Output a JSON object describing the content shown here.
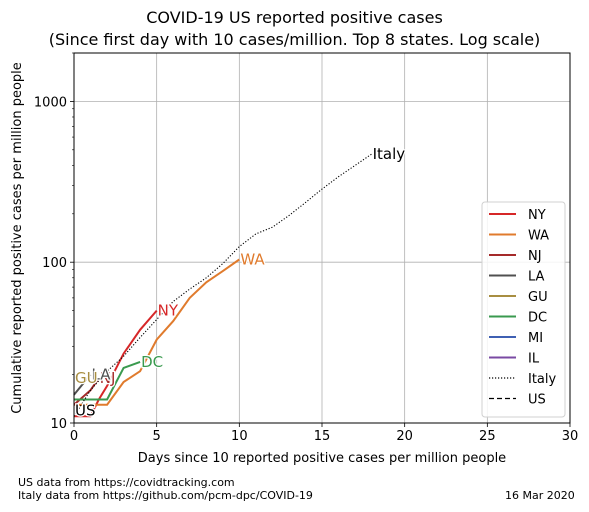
{
  "chart_data": {
    "type": "line",
    "title": [
      "COVID-19 US reported positive cases",
      "(Since first day with 10 cases/million. Top 8 states. Log scale)"
    ],
    "xlabel": "Days since 10 reported positive cases per million people",
    "ylabel": "Cumulative reported positive cases per million people",
    "xlim": [
      0,
      30
    ],
    "ylim": [
      10,
      2000
    ],
    "yscale": "log",
    "xticks": [
      0,
      5,
      10,
      15,
      20,
      25,
      30
    ],
    "yticks": [
      10,
      100,
      1000
    ],
    "grid": true,
    "legend_position": "center-right",
    "series": [
      {
        "name": "NY",
        "color": "#d62728",
        "style": "solid",
        "label_text": "NY",
        "x": [
          0,
          0.5,
          1,
          1.5,
          2,
          3,
          4,
          5
        ],
        "y": [
          11,
          11,
          11,
          14,
          17,
          27,
          38,
          50
        ]
      },
      {
        "name": "WA",
        "color": "#e07b2d",
        "style": "solid",
        "label_text": "WA",
        "x": [
          0,
          1,
          2,
          3,
          4,
          5,
          6,
          7,
          8,
          9,
          10
        ],
        "y": [
          13,
          13,
          13,
          18,
          21,
          33,
          43,
          60,
          75,
          88,
          104
        ]
      },
      {
        "name": "NJ",
        "color": "#a52a2a",
        "style": "solid",
        "label_text": "NJ",
        "x": [
          0,
          1,
          1.5
        ],
        "y": [
          13,
          16,
          19
        ]
      },
      {
        "name": "LA",
        "color": "#505050",
        "style": "solid",
        "label_text": "LA",
        "x": [
          0,
          1
        ],
        "y": [
          15,
          20
        ]
      },
      {
        "name": "GU",
        "color": "#a88e41",
        "style": "solid",
        "label_text": "GU",
        "x": [
          0
        ],
        "y": [
          19
        ]
      },
      {
        "name": "DC",
        "color": "#3a9a4f",
        "style": "solid",
        "label_text": "DC",
        "x": [
          0,
          1,
          2,
          3,
          4
        ],
        "y": [
          14,
          14,
          14,
          22,
          24
        ]
      },
      {
        "name": "MI",
        "color": "#3f60b3",
        "style": "solid",
        "label_text": "",
        "x": [],
        "y": []
      },
      {
        "name": "IL",
        "color": "#7a4aa3",
        "style": "solid",
        "label_text": "",
        "x": [],
        "y": []
      },
      {
        "name": "Italy",
        "color": "#000000",
        "style": "dotted",
        "label_text": "Italy",
        "x": [
          0,
          1,
          2,
          3,
          4,
          5,
          6,
          7,
          8,
          9,
          10,
          11,
          12,
          13,
          14,
          15,
          16,
          17,
          18
        ],
        "y": [
          11,
          16,
          21,
          26,
          34,
          44,
          57,
          68,
          80,
          98,
          125,
          150,
          165,
          195,
          235,
          285,
          340,
          400,
          470
        ]
      },
      {
        "name": "US",
        "color": "#000000",
        "style": "dashed",
        "label_text": "US",
        "x": [
          0
        ],
        "y": [
          12
        ]
      }
    ]
  },
  "footer": {
    "source_us": "US data from https://covidtracking.com",
    "source_italy": "Italy data from https://github.com/pcm-dpc/COVID-19",
    "date": "16 Mar 2020"
  }
}
